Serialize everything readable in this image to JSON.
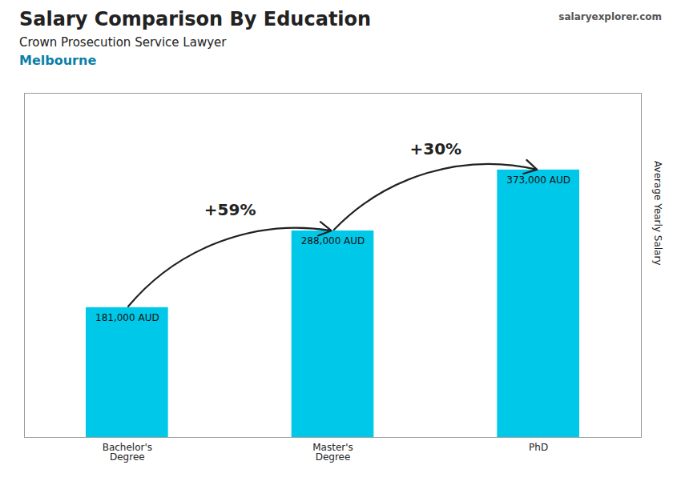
{
  "chart_data": {
    "type": "bar",
    "title": "Salary Comparison By Education",
    "subtitle": [
      "Crown Prosecution Service Lawyer",
      "Melbourne"
    ],
    "ylabel": "Average Yearly Salary",
    "categories": [
      "Bachelor's\nDegree",
      "Master's\nDegree",
      "PhD"
    ],
    "values": [
      181000,
      288000,
      373000
    ],
    "value_labels": [
      "181,000 AUD",
      "288,000 AUD",
      "373,000 AUD"
    ],
    "data_labels": true,
    "color": "#00c8e8",
    "ylim": [
      0,
      480000
    ],
    "tick_labels": "x",
    "grid": false,
    "annotations": [
      "+59%",
      "+30%",
      "salaryexplorer.com"
    ]
  }
}
